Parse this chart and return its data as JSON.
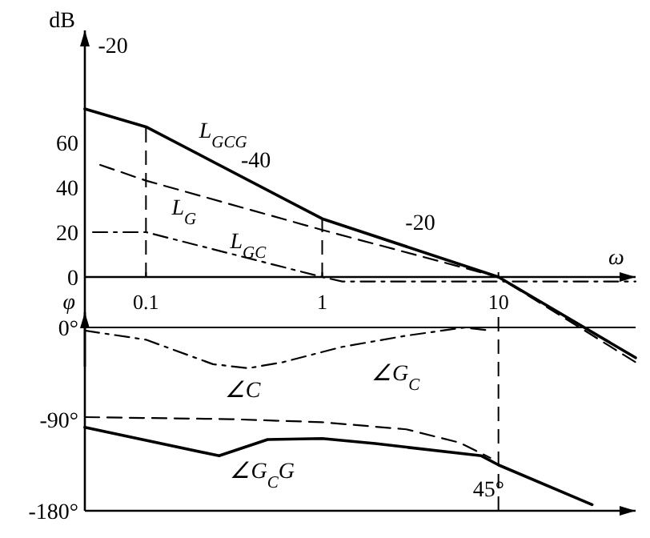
{
  "chart_data": [
    {
      "type": "line",
      "ylabel": "dB",
      "xlabel": "ω",
      "log": "x",
      "grid": false,
      "xlim": [
        0.045,
        60
      ],
      "ylim": [
        -40,
        110
      ],
      "xticks": [
        0.1,
        1,
        10
      ],
      "yticks": [
        0,
        20,
        40,
        60
      ],
      "series": [
        {
          "name": "L$_{GCG}$",
          "color": "#000000",
          "line_style": "solid",
          "x": [
            0.045,
            0.1,
            1,
            10,
            60
          ],
          "values": [
            75,
            67,
            26,
            0,
            -36
          ]
        },
        {
          "name": "L$_{G}$",
          "color": "#000000",
          "line_style": "dashed",
          "x": [
            0.055,
            0.1,
            1,
            10,
            60
          ],
          "values": [
            50,
            43,
            21,
            0,
            -38
          ]
        },
        {
          "name": "L$_{GC}$",
          "color": "#000000",
          "line_style": "dashdot",
          "x": [
            0.05,
            0.1,
            1,
            1.3,
            60
          ],
          "values": [
            20,
            20,
            0,
            -2,
            -2
          ]
        }
      ],
      "ref_lines": [
        {
          "axis": "x",
          "value": 0.1,
          "line_style": "dashed"
        },
        {
          "axis": "x",
          "value": 1,
          "line_style": "dashed"
        }
      ],
      "annotations": [
        "-20",
        "-40",
        "-20"
      ]
    },
    {
      "type": "line",
      "ylabel": "φ",
      "log": "x",
      "grid": false,
      "tick_labels": "y",
      "xlim": [
        0.045,
        60
      ],
      "ylim": [
        -180,
        15
      ],
      "yticks": [
        {
          "value": 0,
          "label": "0°"
        },
        {
          "value": -90,
          "label": "-90°"
        },
        {
          "value": -180,
          "label": "-180°"
        }
      ],
      "series": [
        {
          "name": "∠G$_{C}$",
          "color": "#000000",
          "line_style": "dashdot",
          "x": [
            0.045,
            0.1,
            0.24,
            0.38,
            0.6,
            1.3,
            3,
            6.4,
            9
          ],
          "values": [
            -3,
            -12,
            -36,
            -40,
            -34,
            -19,
            -8,
            0,
            -3
          ]
        },
        {
          "name": "∠C",
          "color": "#000000",
          "line_style": "dashed",
          "x": [
            0.045,
            0.3,
            1,
            3,
            6,
            9
          ],
          "values": [
            -88,
            -90,
            -93,
            -100,
            -113,
            -128
          ]
        },
        {
          "name": "∠G$_{C}$G",
          "color": "#000000",
          "line_style": "solid",
          "x": [
            0.045,
            0.26,
            0.49,
            1,
            2,
            8,
            10,
            34
          ],
          "values": [
            -98,
            -126,
            -110,
            -109,
            -114,
            -126,
            -135,
            -174
          ]
        }
      ],
      "ref_lines": [
        {
          "axis": "x",
          "value": 10,
          "line_style": "dashed"
        },
        {
          "axis": "y",
          "value": 0,
          "line_style": "solid"
        }
      ],
      "annotations": [
        "45°"
      ]
    }
  ]
}
